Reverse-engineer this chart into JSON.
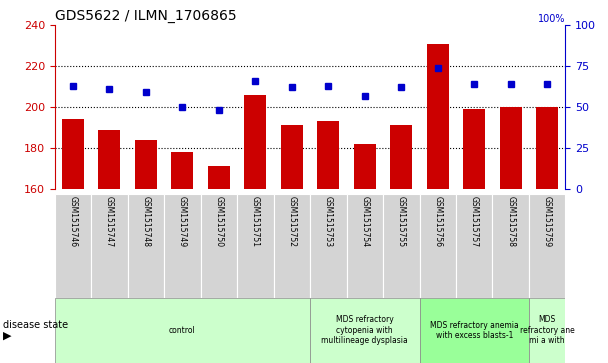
{
  "title": "GDS5622 / ILMN_1706865",
  "samples": [
    "GSM1515746",
    "GSM1515747",
    "GSM1515748",
    "GSM1515749",
    "GSM1515750",
    "GSM1515751",
    "GSM1515752",
    "GSM1515753",
    "GSM1515754",
    "GSM1515755",
    "GSM1515756",
    "GSM1515757",
    "GSM1515758",
    "GSM1515759"
  ],
  "counts": [
    194,
    189,
    184,
    178,
    171,
    206,
    191,
    193,
    182,
    191,
    231,
    199,
    200,
    200
  ],
  "percentiles": [
    63,
    61,
    59,
    50,
    48,
    66,
    62,
    63,
    57,
    62,
    74,
    64,
    64,
    64
  ],
  "ylim_left": [
    160,
    240
  ],
  "ylim_right": [
    0,
    100
  ],
  "yticks_left": [
    160,
    180,
    200,
    220,
    240
  ],
  "yticks_right": [
    0,
    25,
    50,
    75,
    100
  ],
  "bar_color": "#cc0000",
  "dot_color": "#0000cc",
  "grid_color": "#000000",
  "tick_label_color_left": "#cc0000",
  "tick_label_color_right": "#0000cc",
  "group_labels": [
    "control",
    "MDS refractory\ncytopenia with\nmultilineage dysplasia",
    "MDS refractory anemia\nwith excess blasts-1",
    "MDS\nrefractory ane\nmi a with"
  ],
  "group_ranges": [
    [
      0,
      7
    ],
    [
      7,
      10
    ],
    [
      10,
      13
    ],
    [
      13,
      14
    ]
  ],
  "group_colors": [
    "#ccffcc",
    "#ccffcc",
    "#99ff99",
    "#ccffcc"
  ]
}
